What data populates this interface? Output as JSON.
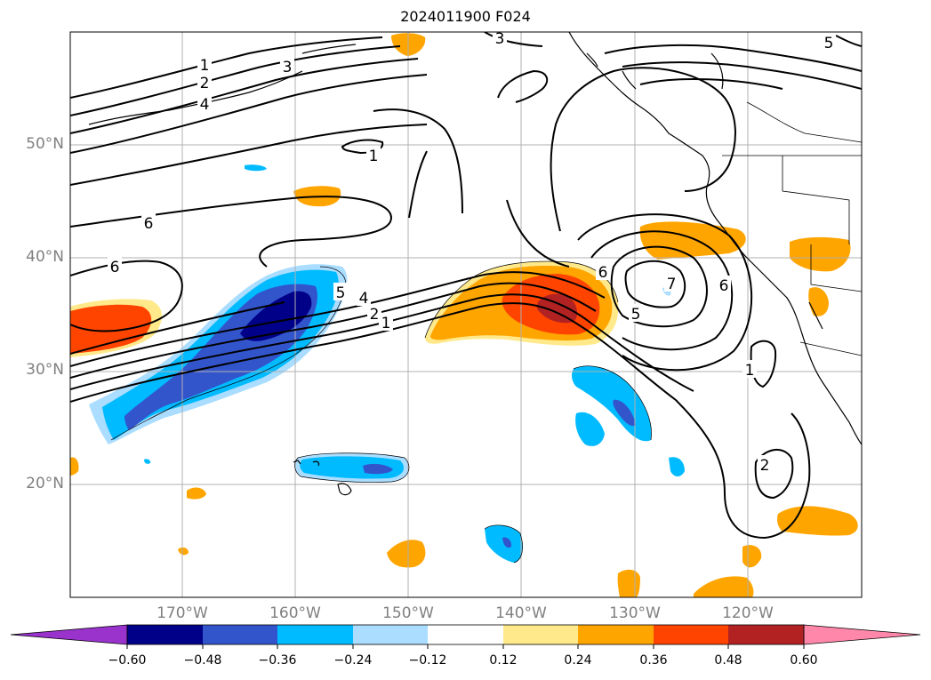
{
  "title": "2024011900 F024",
  "lat_labels": [
    "50°N",
    "40°N",
    "30°N",
    "20°N"
  ],
  "lon_labels": [
    "170°W",
    "160°W",
    "150°W",
    "140°W",
    "130°W",
    "120°W"
  ],
  "contour_labels": [
    "1",
    "2",
    "3",
    "4",
    "5",
    "6",
    "7"
  ],
  "colorbar": {
    "ticks": [
      "−0.60",
      "−0.48",
      "−0.36",
      "−0.24",
      "−0.12",
      "0.12",
      "0.24",
      "0.36",
      "0.48",
      "0.60"
    ],
    "colors": [
      "#9933cc",
      "#000088",
      "#3355cc",
      "#00bbff",
      "#aaddff",
      "#ffffff",
      "#ffe98a",
      "#ffa500",
      "#ff4400",
      "#b22222",
      "#ff88aa"
    ]
  }
}
